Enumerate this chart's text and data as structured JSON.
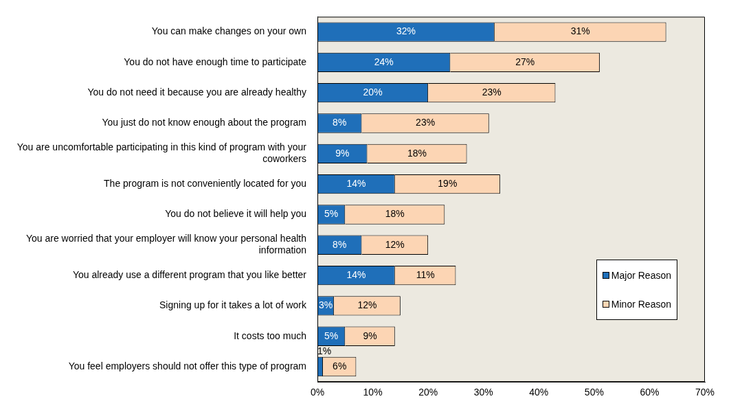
{
  "chart_data": {
    "type": "bar",
    "orientation": "horizontal",
    "stacked": true,
    "categories": [
      "You can make changes on your own",
      "You do not have enough time to participate",
      "You do not need it because you are already healthy",
      "You just do not know enough about the program",
      "You are uncomfortable participating in this kind of program with your coworkers",
      "The program is not conveniently located for you",
      "You do not believe it will help you",
      "You are worried that your employer will know your personal health information",
      "You already use a different program that you like better",
      "Signing up for it takes a lot of work",
      "It costs too much",
      "You feel employers should not offer this type of program"
    ],
    "series": [
      {
        "name": "Major Reason",
        "color": "#1f6fb9",
        "values": [
          32,
          24,
          20,
          8,
          9,
          14,
          5,
          8,
          14,
          3,
          5,
          1
        ],
        "value_labels": [
          "32%",
          "24%",
          "20%",
          "8%",
          "9%",
          "14%",
          "5%",
          "8%",
          "14%",
          "3%",
          "5%",
          "1%"
        ]
      },
      {
        "name": "Minor Reason",
        "color": "#fcd5b4",
        "values": [
          31,
          27,
          23,
          23,
          18,
          19,
          18,
          12,
          11,
          12,
          9,
          6
        ],
        "value_labels": [
          "31%",
          "27%",
          "23%",
          "23%",
          "18%",
          "19%",
          "18%",
          "12%",
          "11%",
          "12%",
          "9%",
          "6%"
        ]
      }
    ],
    "xlim": [
      0,
      70
    ],
    "xticks": [
      {
        "value": 0,
        "label": "0%"
      },
      {
        "value": 10,
        "label": "10%"
      },
      {
        "value": 20,
        "label": "20%"
      },
      {
        "value": 30,
        "label": "30%"
      },
      {
        "value": 40,
        "label": "40%"
      },
      {
        "value": 50,
        "label": "50%"
      },
      {
        "value": 60,
        "label": "60%"
      },
      {
        "value": 70,
        "label": "70%"
      }
    ],
    "grid": false,
    "legend": "right"
  }
}
